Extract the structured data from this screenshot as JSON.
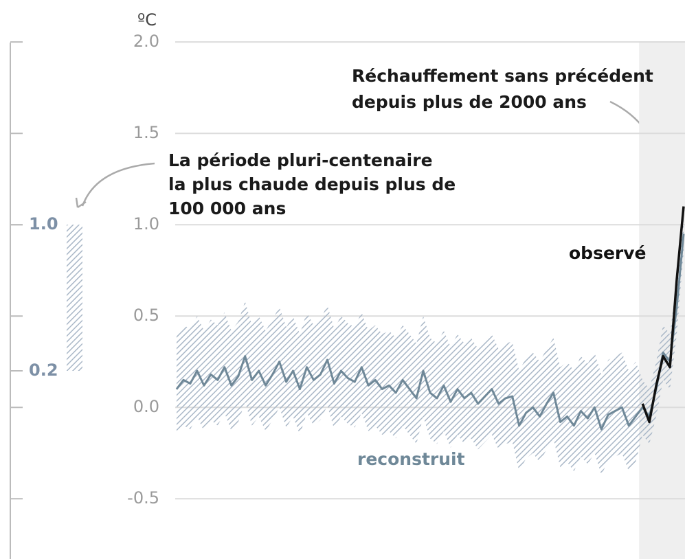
{
  "chart_data": {
    "type": "line",
    "y_label": "ºC",
    "ylim": [
      -0.83,
      2.23
    ],
    "yticks": [
      {
        "value": 2.0,
        "label": "2.0"
      },
      {
        "value": 1.5,
        "label": "1.5"
      },
      {
        "value": 1.0,
        "label": "1.0"
      },
      {
        "value": 0.5,
        "label": "0.5"
      },
      {
        "value": 0.0,
        "label": "0.0"
      },
      {
        "value": -0.5,
        "label": "-0.5"
      }
    ],
    "grid": true,
    "series": [
      {
        "name": "reconstruit",
        "color": "#6f8898",
        "band_color": "#a9b7c7",
        "values": [
          0.1,
          0.15,
          0.13,
          0.2,
          0.12,
          0.18,
          0.15,
          0.22,
          0.12,
          0.17,
          0.28,
          0.15,
          0.2,
          0.12,
          0.18,
          0.25,
          0.14,
          0.2,
          0.1,
          0.22,
          0.15,
          0.18,
          0.26,
          0.13,
          0.2,
          0.16,
          0.14,
          0.22,
          0.12,
          0.15,
          0.1,
          0.12,
          0.08,
          0.15,
          0.1,
          0.05,
          0.2,
          0.08,
          0.05,
          0.12,
          0.03,
          0.1,
          0.05,
          0.08,
          0.02,
          0.06,
          0.1,
          0.02,
          0.05,
          0.06,
          -0.1,
          -0.03,
          0.0,
          -0.05,
          0.02,
          0.08,
          -0.08,
          -0.05,
          -0.1,
          -0.02,
          -0.06,
          0.0,
          -0.12,
          -0.04,
          -0.02,
          0.0,
          -0.1,
          -0.05,
          0.0,
          -0.05,
          0.1,
          0.3,
          0.25,
          0.55,
          0.95
        ],
        "high": [
          0.4,
          0.45,
          0.43,
          0.5,
          0.42,
          0.48,
          0.45,
          0.52,
          0.42,
          0.47,
          0.58,
          0.45,
          0.5,
          0.42,
          0.48,
          0.55,
          0.44,
          0.5,
          0.4,
          0.52,
          0.45,
          0.48,
          0.56,
          0.43,
          0.5,
          0.46,
          0.44,
          0.52,
          0.42,
          0.45,
          0.4,
          0.42,
          0.38,
          0.45,
          0.4,
          0.35,
          0.5,
          0.38,
          0.35,
          0.42,
          0.33,
          0.4,
          0.35,
          0.38,
          0.32,
          0.36,
          0.4,
          0.32,
          0.35,
          0.36,
          0.2,
          0.27,
          0.3,
          0.25,
          0.32,
          0.38,
          0.22,
          0.25,
          0.2,
          0.28,
          0.24,
          0.3,
          0.18,
          0.26,
          0.28,
          0.3,
          0.2,
          0.25,
          0.15,
          0.1,
          0.25,
          0.45,
          0.4,
          0.7,
          1.05
        ],
        "low": [
          -0.15,
          -0.1,
          -0.12,
          -0.05,
          -0.13,
          -0.07,
          -0.1,
          -0.03,
          -0.13,
          -0.08,
          0.03,
          -0.1,
          -0.05,
          -0.13,
          -0.07,
          0.0,
          -0.11,
          -0.05,
          -0.15,
          -0.03,
          -0.1,
          -0.07,
          0.01,
          -0.12,
          -0.05,
          -0.09,
          -0.11,
          -0.03,
          -0.13,
          -0.1,
          -0.15,
          -0.13,
          -0.17,
          -0.1,
          -0.15,
          -0.2,
          -0.05,
          -0.17,
          -0.2,
          -0.13,
          -0.22,
          -0.15,
          -0.2,
          -0.17,
          -0.23,
          -0.19,
          -0.15,
          -0.23,
          -0.2,
          -0.19,
          -0.35,
          -0.28,
          -0.25,
          -0.3,
          -0.23,
          -0.17,
          -0.33,
          -0.3,
          -0.35,
          -0.27,
          -0.31,
          -0.25,
          -0.37,
          -0.29,
          -0.27,
          -0.25,
          -0.35,
          -0.3,
          -0.15,
          -0.2,
          -0.05,
          0.15,
          0.1,
          0.4,
          0.85
        ]
      },
      {
        "name": "observé",
        "color": "#111111",
        "values": [
          null,
          null,
          null,
          null,
          null,
          null,
          null,
          null,
          null,
          null,
          null,
          null,
          null,
          null,
          null,
          null,
          null,
          null,
          null,
          null,
          null,
          null,
          null,
          null,
          null,
          null,
          null,
          null,
          null,
          null,
          null,
          null,
          null,
          null,
          null,
          null,
          null,
          null,
          null,
          null,
          null,
          null,
          null,
          null,
          null,
          null,
          null,
          null,
          null,
          null,
          null,
          null,
          null,
          null,
          null,
          null,
          null,
          null,
          null,
          null,
          null,
          null,
          null,
          null,
          null,
          null,
          null,
          null,
          0.02,
          -0.08,
          0.12,
          0.28,
          0.22,
          0.7,
          1.1
        ]
      }
    ],
    "period_bar": {
      "values": [
        0.2,
        1.0
      ],
      "value_labels": [
        "0.2",
        "1.0"
      ],
      "color": "#a9b7c7"
    },
    "annotations": [
      {
        "lines": [
          "Réchauffement sans précédent",
          "depuis plus de 2000 ans"
        ]
      },
      {
        "lines": [
          "La période pluri-centenaire",
          "la plus chaude depuis plus de",
          "100 000 ans"
        ]
      }
    ]
  }
}
